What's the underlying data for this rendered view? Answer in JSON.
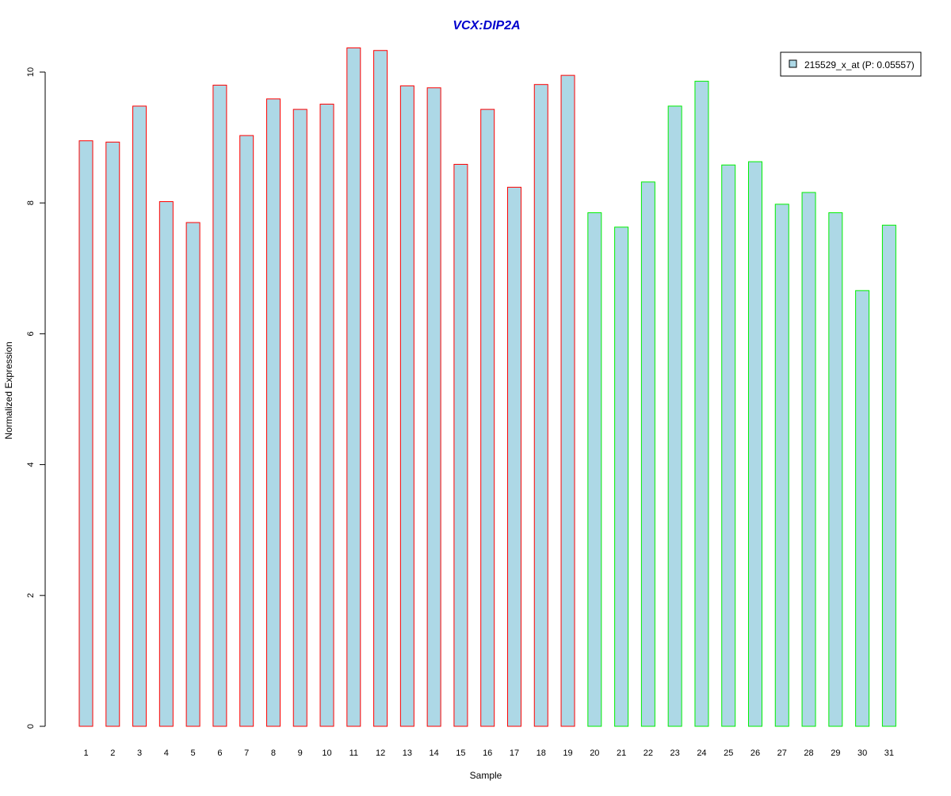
{
  "chart_data": {
    "type": "bar",
    "title": "VCX:DIP2A",
    "xlabel": "Sample",
    "ylabel": "Normalized Expression",
    "categories": [
      "1",
      "2",
      "3",
      "4",
      "5",
      "6",
      "7",
      "8",
      "9",
      "10",
      "11",
      "12",
      "13",
      "14",
      "15",
      "16",
      "17",
      "18",
      "19",
      "20",
      "21",
      "22",
      "23",
      "24",
      "25",
      "26",
      "27",
      "28",
      "29",
      "30",
      "31"
    ],
    "series": [
      {
        "name": "215529_x_at (P: 0.05557)",
        "values": [
          8.95,
          8.93,
          9.48,
          8.02,
          7.7,
          9.8,
          9.03,
          9.59,
          9.43,
          9.51,
          10.37,
          10.33,
          9.79,
          9.76,
          8.59,
          9.43,
          8.24,
          9.81,
          9.95,
          7.85,
          7.63,
          8.32,
          9.48,
          9.86,
          8.58,
          8.63,
          7.98,
          8.16,
          7.85,
          6.66,
          7.66
        ]
      }
    ],
    "groups": [
      "red",
      "red",
      "red",
      "red",
      "red",
      "red",
      "red",
      "red",
      "red",
      "red",
      "red",
      "red",
      "red",
      "red",
      "red",
      "red",
      "red",
      "red",
      "red",
      "green",
      "green",
      "green",
      "green",
      "green",
      "green",
      "green",
      "green",
      "green",
      "green",
      "green",
      "green"
    ],
    "yticks": [
      0,
      2,
      4,
      6,
      8,
      10
    ],
    "ylim": [
      0,
      10.5
    ],
    "grid": false,
    "legend_position": "top-right",
    "colors": {
      "bar_fill": "#add8e6",
      "group_red_border": "#ff0000",
      "group_green_border": "#00ee00",
      "title": "#0000cd",
      "axis": "#000000"
    }
  }
}
